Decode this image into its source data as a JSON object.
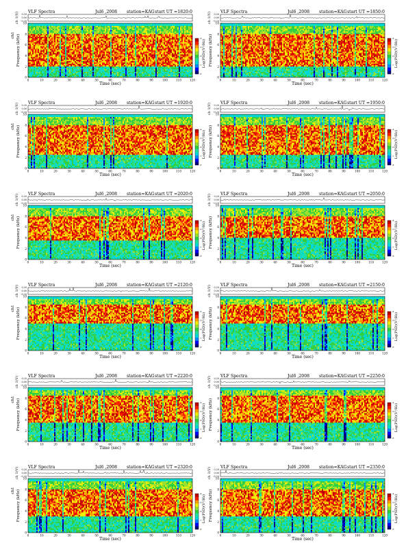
{
  "header": {
    "product": "VLF Spectra",
    "date": "Jul6 ,2008",
    "station": "station=KAG",
    "ut_prefix": "start UT ="
  },
  "axes": {
    "x_label": "Time (sec)",
    "y_label": "Frequency (kHz)",
    "trace_label": "ch 1(V)",
    "trace_label_left": "ch1",
    "colorbar_label": "Log(PSD)(V²/Hz)",
    "x_ticks": [
      "0",
      "10",
      "20",
      "30",
      "40",
      "50",
      "60",
      "70",
      "80",
      "90",
      "100",
      "110",
      "120"
    ],
    "y_ticks": [
      "0",
      "2",
      "4",
      "6",
      "8",
      "10"
    ],
    "trace_ticks": [
      "0.20",
      "0.00",
      "-0.20"
    ],
    "colorbar_ticks": [
      "-4",
      "-5",
      "-6",
      "-7",
      "-8"
    ]
  },
  "colors": {
    "colormap": [
      "#00007f",
      "#0000ff",
      "#0088ff",
      "#00d8d8",
      "#22e0a0",
      "#30d040",
      "#9be030",
      "#f0f000",
      "#ff9a00",
      "#ff2000",
      "#c00000"
    ]
  },
  "chart_data": [
    {
      "type": "heatmap",
      "start_ut": "1820:0",
      "xlim": [
        0,
        120
      ],
      "ylim": [
        0,
        10
      ],
      "trace_ylim": [
        -0.2,
        0.2
      ],
      "band_khz": [
        2.0,
        8.0
      ],
      "background_khz": 10.0
    },
    {
      "type": "heatmap",
      "start_ut": "1850:0",
      "xlim": [
        0,
        120
      ],
      "ylim": [
        0,
        10
      ],
      "trace_ylim": [
        -0.2,
        0.2
      ],
      "band_khz": [
        2.0,
        8.0
      ],
      "background_khz": 10.0
    },
    {
      "type": "heatmap",
      "start_ut": "1920:0",
      "xlim": [
        0,
        120
      ],
      "ylim": [
        0,
        10
      ],
      "trace_ylim": [
        -0.2,
        0.2
      ],
      "band_khz": [
        2.5,
        8.0
      ],
      "background_khz": 10.0
    },
    {
      "type": "heatmap",
      "start_ut": "1950:0",
      "xlim": [
        0,
        120
      ],
      "ylim": [
        0,
        10
      ],
      "trace_ylim": [
        -0.2,
        0.2
      ],
      "band_khz": [
        2.5,
        8.0
      ],
      "background_khz": 10.0
    },
    {
      "type": "heatmap",
      "start_ut": "2020:0",
      "xlim": [
        0,
        120
      ],
      "ylim": [
        0,
        10
      ],
      "trace_ylim": [
        -0.2,
        0.2
      ],
      "band_khz": [
        3.5,
        8.0
      ],
      "background_khz": 10.0
    },
    {
      "type": "heatmap",
      "start_ut": "2050:0",
      "xlim": [
        0,
        120
      ],
      "ylim": [
        0,
        10
      ],
      "trace_ylim": [
        -0.2,
        0.2
      ],
      "band_khz": [
        4.0,
        8.0
      ],
      "background_khz": 10.0
    },
    {
      "type": "heatmap",
      "start_ut": "2120:0",
      "xlim": [
        0,
        120
      ],
      "ylim": [
        0,
        10
      ],
      "trace_ylim": [
        -0.2,
        0.2
      ],
      "band_khz": [
        5.0,
        8.5
      ],
      "background_khz": 10.0
    },
    {
      "type": "heatmap",
      "start_ut": "2150:0",
      "xlim": [
        0,
        120
      ],
      "ylim": [
        0,
        10
      ],
      "trace_ylim": [
        -0.2,
        0.2
      ],
      "band_khz": [
        5.0,
        8.5
      ],
      "background_khz": 10.0
    },
    {
      "type": "heatmap",
      "start_ut": "2220:0",
      "xlim": [
        0,
        120
      ],
      "ylim": [
        0,
        10
      ],
      "trace_ylim": [
        -0.2,
        0.2
      ],
      "band_khz": [
        3.5,
        8.5
      ],
      "background_khz": 10.0
    },
    {
      "type": "heatmap",
      "start_ut": "2250:0",
      "xlim": [
        0,
        120
      ],
      "ylim": [
        0,
        10
      ],
      "trace_ylim": [
        -0.2,
        0.2
      ],
      "band_khz": [
        3.5,
        8.5
      ],
      "background_khz": 10.0
    },
    {
      "type": "heatmap",
      "start_ut": "2320:0",
      "xlim": [
        0,
        120
      ],
      "ylim": [
        0,
        10
      ],
      "trace_ylim": [
        -0.2,
        0.2
      ],
      "band_khz": [
        3.0,
        8.0
      ],
      "background_khz": 10.0
    },
    {
      "type": "heatmap",
      "start_ut": "2350:0",
      "xlim": [
        0,
        120
      ],
      "ylim": [
        0,
        10
      ],
      "trace_ylim": [
        -0.2,
        0.2
      ],
      "band_khz": [
        3.0,
        8.0
      ],
      "background_khz": 10.0
    }
  ]
}
